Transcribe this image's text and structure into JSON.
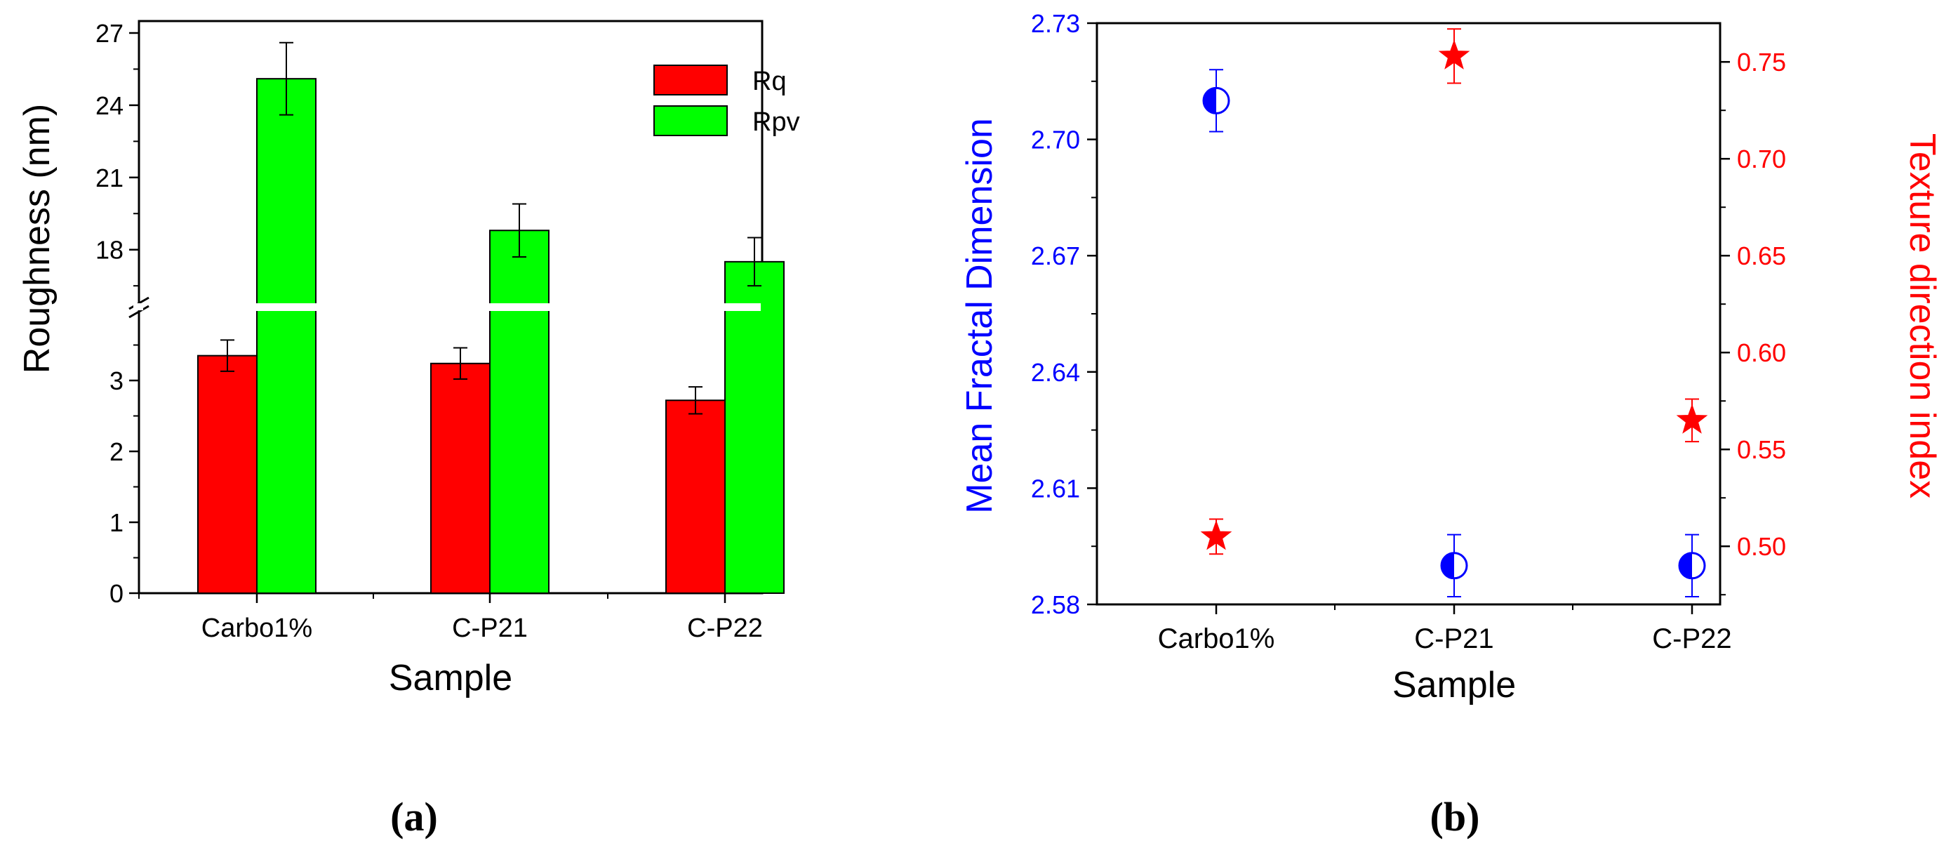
{
  "chart_data": [
    {
      "type": "bar",
      "panel_label": "(a)",
      "title": "",
      "xlabel": "Sample",
      "ylabel": "Roughness (nm)",
      "categories": [
        "Carbo1%",
        "C-P21",
        "C-P22"
      ],
      "series": [
        {
          "name": "Rq",
          "color": "#ff0000",
          "values": [
            3.35,
            3.24,
            2.72
          ],
          "errors": [
            0.22,
            0.22,
            0.19
          ]
        },
        {
          "name": "Rpv",
          "color": "#00ff00",
          "values": [
            25.1,
            18.8,
            17.5
          ],
          "errors": [
            1.5,
            1.1,
            1.0
          ]
        }
      ],
      "y_axis_break": {
        "lower_range": [
          0,
          4
        ],
        "upper_range": [
          16,
          27
        ]
      },
      "lower_ticks": [
        "0",
        "1",
        "2",
        "3"
      ],
      "upper_ticks": [
        "18",
        "21",
        "24",
        "27"
      ],
      "legend_position": "top-right",
      "grid": false
    },
    {
      "type": "scatter",
      "panel_label": "(b)",
      "title": "",
      "xlabel": "Sample",
      "categories": [
        "Carbo1%",
        "C-P21",
        "C-P22"
      ],
      "y_left": {
        "label": "Mean Fractal Dimension",
        "color": "#0000ff",
        "range": [
          2.58,
          2.73
        ],
        "ticks": [
          "2.58",
          "2.61",
          "2.64",
          "2.67",
          "2.70",
          "2.73"
        ],
        "values": [
          2.71,
          2.59,
          2.59
        ],
        "errors": [
          0.008,
          0.008,
          0.008
        ],
        "marker": "half-filled circle"
      },
      "y_right": {
        "label": "Texture direction index",
        "color": "#ff0000",
        "range": [
          0.47,
          0.77
        ],
        "ticks": [
          "0.50",
          "0.55",
          "0.60",
          "0.65",
          "0.70",
          "0.75"
        ],
        "values": [
          0.505,
          0.753,
          0.565
        ],
        "errors": [
          0.009,
          0.014,
          0.011
        ],
        "marker": "star"
      },
      "grid": false
    }
  ]
}
